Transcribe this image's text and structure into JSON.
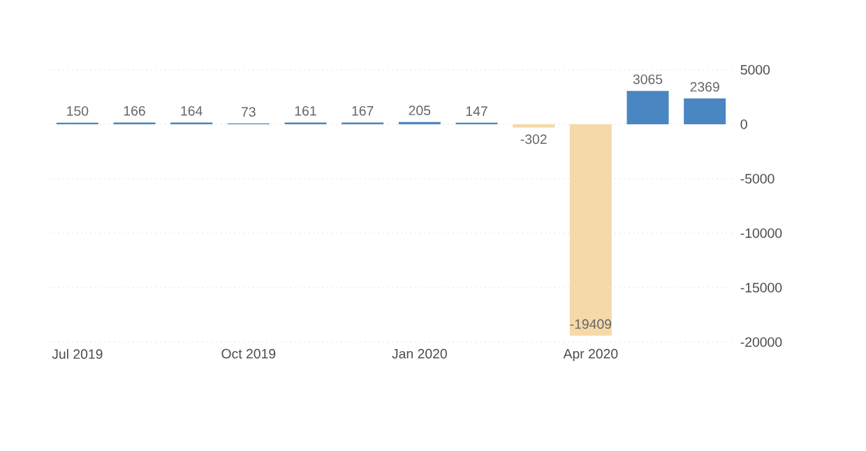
{
  "chart_data": {
    "type": "bar",
    "categories": [
      "Jul 2019",
      null,
      null,
      "Oct 2019",
      null,
      null,
      "Jan 2020",
      null,
      null,
      "Apr 2020",
      null,
      null
    ],
    "values": [
      150,
      166,
      164,
      73,
      161,
      167,
      205,
      147,
      -302,
      -19409,
      3065,
      2369
    ],
    "colors": [
      "#4a86c1",
      "#4a86c1",
      "#4a86c1",
      "#4a86c1",
      "#4a86c1",
      "#4a86c1",
      "#4a86c1",
      "#4a86c1",
      "#f5d9a8",
      "#f5d9a8",
      "#4a86c1",
      "#4a86c1"
    ],
    "ylim": [
      -20000,
      5000
    ],
    "yticks": [
      -20000,
      -15000,
      -10000,
      -5000,
      0,
      5000
    ],
    "grid": "y",
    "data_labels": true
  }
}
